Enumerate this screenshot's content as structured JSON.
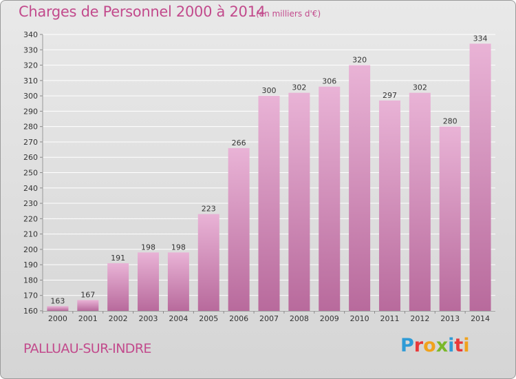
{
  "header": {
    "title": "Charges de Personnel 2000 à 2014",
    "subtitle": "(en milliers d'€)"
  },
  "footer": {
    "town": "PALLUAU-SUR-INDRE",
    "logo_text": "Proxiti",
    "logo_colors": [
      "#2f9bd6",
      "#e8393a",
      "#f0a21c",
      "#7ab829",
      "#2f9bd6",
      "#e8393a",
      "#f0a21c"
    ]
  },
  "colors": {
    "title": "#c24a8c",
    "bar_light": "#e9b3d6",
    "bar_dark": "#b86a9c",
    "grid": "#ffffff"
  },
  "chart_data": {
    "type": "bar",
    "categories": [
      "2000",
      "2001",
      "2002",
      "2003",
      "2004",
      "2005",
      "2006",
      "2007",
      "2008",
      "2009",
      "2010",
      "2011",
      "2012",
      "2013",
      "2014"
    ],
    "values": [
      163,
      167,
      191,
      198,
      198,
      223,
      266,
      300,
      302,
      306,
      320,
      297,
      302,
      280,
      334
    ],
    "title": "Charges de Personnel 2000 à 2014",
    "subtitle": "(en milliers d'€)",
    "ylim": [
      160,
      340
    ],
    "yticks": [
      160,
      170,
      180,
      190,
      200,
      210,
      220,
      230,
      240,
      250,
      260,
      270,
      280,
      290,
      300,
      310,
      320,
      330,
      340
    ],
    "grid": true,
    "data_labels": true
  }
}
